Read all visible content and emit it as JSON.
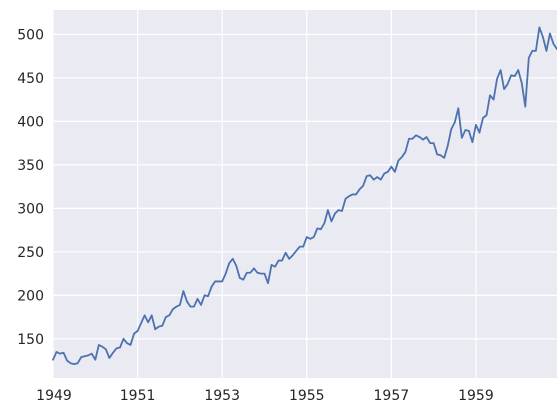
{
  "chart_data": {
    "type": "line",
    "title": "",
    "xlabel": "",
    "ylabel": "",
    "x_range": [
      "1949-01",
      "1960-12"
    ],
    "ylim": [
      105,
      528
    ],
    "grid": true,
    "legend": "none",
    "colors": {
      "background": "#eaeaf2",
      "grid": "#ffffff",
      "line": "#4c72b0",
      "text": "#262626"
    },
    "x_ticks": [
      {
        "date": "1949-01",
        "label": "1949"
      },
      {
        "date": "1951-01",
        "label": "1951"
      },
      {
        "date": "1953-01",
        "label": "1953"
      },
      {
        "date": "1955-01",
        "label": "1955"
      },
      {
        "date": "1957-01",
        "label": "1957"
      },
      {
        "date": "1959-01",
        "label": "1959"
      }
    ],
    "y_ticks": [
      150,
      200,
      250,
      300,
      350,
      400,
      450,
      500
    ],
    "series": [
      {
        "start": "1949-01",
        "frequency": "monthly",
        "values": [
          126,
          135,
          133,
          134,
          125,
          122,
          121,
          122,
          129,
          130,
          131,
          133,
          126,
          143,
          141,
          138,
          128,
          134,
          139,
          140,
          150,
          145,
          143,
          156,
          159,
          168,
          177,
          169,
          177,
          161,
          164,
          165,
          175,
          177,
          184,
          187,
          189,
          205,
          193,
          187,
          187,
          196,
          189,
          200,
          199,
          210,
          216,
          216,
          216,
          225,
          237,
          242,
          234,
          220,
          218,
          226,
          226,
          231,
          226,
          225,
          225,
          214,
          235,
          233,
          240,
          240,
          249,
          242,
          246,
          251,
          256,
          256,
          267,
          265,
          267,
          277,
          276,
          283,
          298,
          285,
          294,
          298,
          297,
          311,
          314,
          316,
          316,
          322,
          326,
          337,
          338,
          333,
          336,
          333,
          340,
          342,
          348,
          342,
          355,
          359,
          365,
          380,
          380,
          384,
          382,
          379,
          382,
          375,
          375,
          362,
          361,
          358,
          372,
          391,
          399,
          415,
          381,
          390,
          389,
          376,
          396,
          387,
          404,
          407,
          430,
          425,
          449,
          459,
          437,
          443,
          453,
          452,
          459,
          444,
          417,
          473,
          481,
          481,
          508,
          497,
          481,
          501,
          489,
          483
        ]
      }
    ]
  }
}
